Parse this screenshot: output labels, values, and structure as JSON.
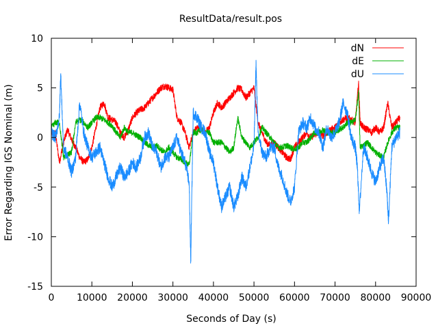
{
  "chart_data": {
    "type": "line",
    "title": "ResultData/result.pos",
    "xlabel": "Seconds of Day (s)",
    "ylabel": "Error Regarding IGS Nominal (m)",
    "xlim": [
      0,
      90000
    ],
    "ylim": [
      -15,
      10
    ],
    "xticks": [
      0,
      10000,
      20000,
      30000,
      40000,
      50000,
      60000,
      70000,
      80000,
      90000
    ],
    "yticks": [
      -15,
      -10,
      -5,
      0,
      5,
      10
    ],
    "grid": false,
    "legend_position": "top-right",
    "series": [
      {
        "name": "dN",
        "color": "#ff0000",
        "x": [
          0,
          1000,
          2000,
          3000,
          4000,
          5000,
          6000,
          7000,
          8000,
          9000,
          10000,
          11000,
          12000,
          13000,
          14000,
          15000,
          16000,
          17000,
          18000,
          19000,
          20000,
          21000,
          22000,
          23000,
          24000,
          25000,
          26000,
          27000,
          28000,
          29000,
          30000,
          31000,
          32000,
          33000,
          34000,
          35000,
          36000,
          37000,
          38000,
          39000,
          40000,
          41000,
          42000,
          43000,
          44000,
          45000,
          46000,
          47000,
          48000,
          49000,
          50000,
          51000,
          52000,
          53000,
          54000,
          55000,
          56000,
          57000,
          58000,
          59000,
          60000,
          61000,
          62000,
          63000,
          64000,
          65000,
          66000,
          67000,
          68000,
          69000,
          70000,
          71000,
          72000,
          73000,
          74000,
          75000,
          75800,
          76200,
          77000,
          78000,
          79000,
          80000,
          81000,
          82000,
          83000,
          84000,
          85000,
          86000
        ],
        "y": [
          0.5,
          0.4,
          -2.5,
          -0.5,
          0.8,
          -0.2,
          -1.0,
          -2.0,
          -2.5,
          -2.2,
          -1.0,
          1.0,
          3.0,
          3.5,
          2.0,
          1.8,
          1.5,
          0.5,
          0.0,
          0.8,
          2.0,
          2.5,
          2.8,
          3.0,
          3.5,
          4.0,
          4.5,
          5.0,
          5.2,
          5.0,
          4.8,
          2.0,
          1.5,
          0.5,
          -1.0,
          0.5,
          1.0,
          0.8,
          0.5,
          1.0,
          2.5,
          3.5,
          3.0,
          3.5,
          4.0,
          4.5,
          5.0,
          4.8,
          4.0,
          4.5,
          5.0,
          1.5,
          0.5,
          -0.5,
          -0.8,
          -0.5,
          -1.0,
          -1.5,
          -2.0,
          -2.2,
          -1.0,
          -0.5,
          0.0,
          0.5,
          0.0,
          0.3,
          0.5,
          0.2,
          0.5,
          0.8,
          1.0,
          1.5,
          1.8,
          2.0,
          1.8,
          1.5,
          5.5,
          1.5,
          1.0,
          0.8,
          0.5,
          1.0,
          0.5,
          1.0,
          3.5,
          1.0,
          1.5,
          2.0
        ]
      },
      {
        "name": "dE",
        "color": "#00b000",
        "x": [
          0,
          1000,
          2000,
          3000,
          4000,
          5000,
          6000,
          7000,
          8000,
          9000,
          10000,
          11000,
          12000,
          13000,
          14000,
          15000,
          16000,
          17000,
          18000,
          19000,
          20000,
          21000,
          22000,
          23000,
          24000,
          25000,
          26000,
          27000,
          28000,
          29000,
          30000,
          31000,
          32000,
          33000,
          34000,
          35000,
          36000,
          37000,
          38000,
          39000,
          40000,
          41000,
          42000,
          43000,
          44000,
          45000,
          46000,
          47000,
          48000,
          49000,
          50000,
          51000,
          52000,
          53000,
          54000,
          55000,
          56000,
          57000,
          58000,
          59000,
          60000,
          61000,
          62000,
          63000,
          64000,
          65000,
          66000,
          67000,
          68000,
          69000,
          70000,
          71000,
          72000,
          73000,
          74000,
          75000,
          75800,
          76200,
          77000,
          78000,
          79000,
          80000,
          81000,
          82000,
          83000,
          84000,
          85000,
          86000
        ],
        "y": [
          1.0,
          1.5,
          1.5,
          -2.0,
          -1.8,
          -1.5,
          1.5,
          1.8,
          1.5,
          1.0,
          1.5,
          2.0,
          2.0,
          1.8,
          1.5,
          1.2,
          0.5,
          0.0,
          1.0,
          0.5,
          0.5,
          0.2,
          0.0,
          -0.5,
          -0.8,
          -1.0,
          -0.8,
          -1.2,
          -1.5,
          -1.0,
          -1.5,
          -2.0,
          -2.2,
          -2.5,
          -2.8,
          0.5,
          0.5,
          0.8,
          0.5,
          0.5,
          -0.5,
          -0.5,
          -0.5,
          -1.0,
          -1.5,
          -1.0,
          2.0,
          0.0,
          -0.5,
          -1.0,
          -0.5,
          0.0,
          1.0,
          0.5,
          0.0,
          -0.5,
          -1.0,
          -1.0,
          -0.8,
          -1.0,
          -1.2,
          -1.0,
          -0.5,
          -0.5,
          0.0,
          0.5,
          0.5,
          0.8,
          0.5,
          0.5,
          0.5,
          0.8,
          1.0,
          1.5,
          1.5,
          1.8,
          4.5,
          -1.0,
          -0.8,
          -0.5,
          -1.0,
          -1.5,
          -1.8,
          -2.0,
          -0.5,
          0.5,
          1.0,
          1.0
        ]
      },
      {
        "name": "dU",
        "color": "#1a8cff",
        "x": [
          0,
          1000,
          2000,
          2300,
          3000,
          4000,
          5000,
          6000,
          7000,
          8000,
          9000,
          10000,
          11000,
          12000,
          13000,
          14000,
          15000,
          16000,
          17000,
          18000,
          19000,
          20000,
          21000,
          22000,
          23000,
          24000,
          25000,
          26000,
          27000,
          28000,
          29000,
          30000,
          31000,
          32000,
          33000,
          34000,
          34400,
          35000,
          36000,
          37000,
          38000,
          39000,
          40000,
          41000,
          42000,
          43000,
          44000,
          45000,
          46000,
          47000,
          48000,
          49000,
          50000,
          50500,
          51000,
          52000,
          53000,
          54000,
          55000,
          56000,
          57000,
          58000,
          59000,
          60000,
          61000,
          62000,
          63000,
          64000,
          65000,
          66000,
          67000,
          68000,
          69000,
          70000,
          71000,
          72000,
          73000,
          74000,
          75000,
          75500,
          76000,
          77000,
          78000,
          79000,
          80000,
          81000,
          82000,
          82800,
          83200,
          84000,
          85000,
          86000
        ],
        "y": [
          0.5,
          0.0,
          2.0,
          6.5,
          -1.0,
          -2.0,
          -3.5,
          -2.0,
          3.5,
          0.5,
          -1.0,
          -2.0,
          -1.5,
          -1.0,
          -2.5,
          -4.0,
          -5.0,
          -4.0,
          -3.0,
          -4.0,
          -3.5,
          -2.5,
          -3.0,
          -2.0,
          0.0,
          0.5,
          -1.0,
          -1.5,
          -3.0,
          -2.0,
          -2.0,
          -1.0,
          0.0,
          -1.5,
          -2.5,
          -4.5,
          -12.5,
          2.5,
          2.0,
          1.0,
          0.5,
          -1.5,
          -2.5,
          -5.0,
          -7.0,
          -6.0,
          -5.0,
          -7.0,
          -6.0,
          -4.0,
          -5.0,
          -3.0,
          -1.0,
          7.5,
          0.5,
          -1.5,
          -2.0,
          -1.0,
          -1.0,
          -3.0,
          -4.0,
          -5.5,
          -6.5,
          -5.0,
          0.5,
          1.5,
          1.0,
          2.0,
          1.0,
          0.5,
          -1.0,
          1.0,
          0.0,
          0.5,
          1.5,
          3.5,
          2.5,
          0.0,
          -1.0,
          -3.0,
          -7.5,
          -1.0,
          -2.0,
          -3.5,
          -4.5,
          -3.0,
          -2.0,
          -5.5,
          -8.5,
          -1.0,
          0.0,
          0.5
        ]
      }
    ]
  }
}
